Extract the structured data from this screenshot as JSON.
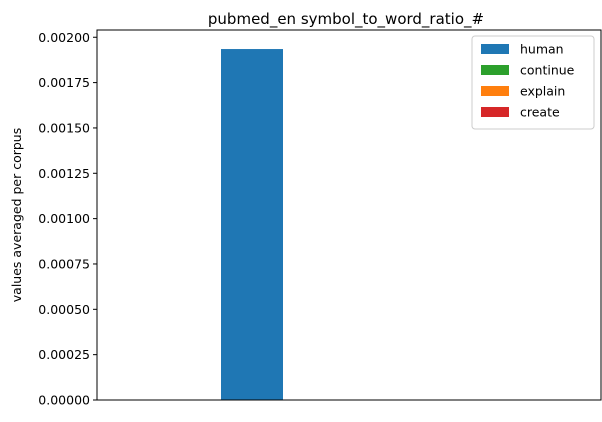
{
  "chart_data": {
    "type": "bar",
    "title": "pubmed_en symbol_to_word_ratio_#",
    "xlabel": "",
    "ylabel": "values averaged per corpus",
    "ylim": [
      0,
      0.00204
    ],
    "y_ticks": [
      0,
      0.00025,
      0.0005,
      0.00075,
      0.001,
      0.00125,
      0.0015,
      0.00175,
      0.002
    ],
    "y_tick_labels": [
      "0.00000",
      "0.00025",
      "0.00050",
      "0.00075",
      "0.00100",
      "0.00125",
      "0.00150",
      "0.00175",
      "0.00200"
    ],
    "x_ticks_visible": false,
    "grid": false,
    "legend_position": "top-right",
    "series": [
      {
        "name": "human",
        "color": "#1f77b4",
        "values": [
          0.001935
        ]
      },
      {
        "name": "continue",
        "color": "#2ca02c",
        "values": [
          0
        ]
      },
      {
        "name": "explain",
        "color": "#ff7f0e",
        "values": [
          0
        ]
      },
      {
        "name": "create",
        "color": "#d62728",
        "values": [
          0
        ]
      }
    ]
  }
}
